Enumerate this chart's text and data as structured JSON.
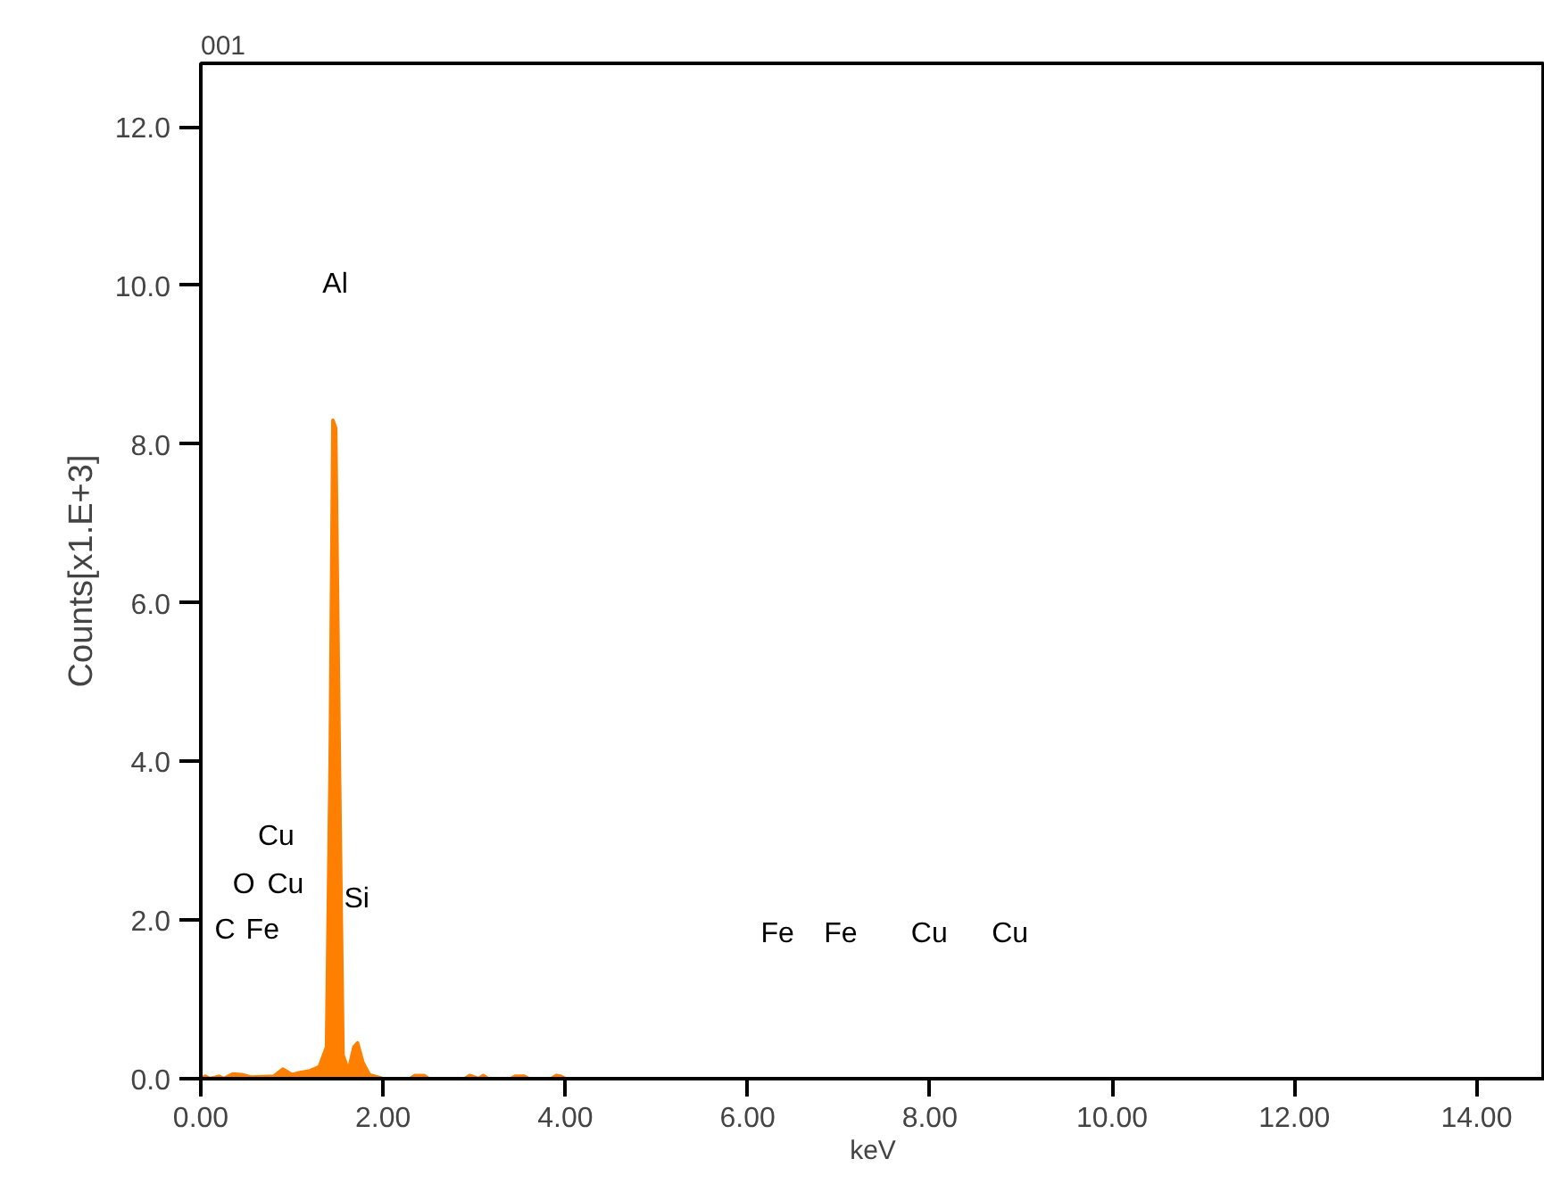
{
  "chart_data": {
    "type": "area",
    "title": "001",
    "xlabel": "keV",
    "ylabel": "Counts[x1.E+3]",
    "xlim": [
      0,
      14.75
    ],
    "ylim": [
      0,
      12.8
    ],
    "xticks": [
      {
        "value": 0,
        "label": "0.00"
      },
      {
        "value": 2,
        "label": "2.00"
      },
      {
        "value": 4,
        "label": "4.00"
      },
      {
        "value": 6,
        "label": "6.00"
      },
      {
        "value": 8,
        "label": "8.00"
      },
      {
        "value": 10,
        "label": "10.00"
      },
      {
        "value": 12,
        "label": "12.00"
      },
      {
        "value": 14,
        "label": "14.00"
      }
    ],
    "yticks": [
      {
        "value": 0,
        "label": "0.0"
      },
      {
        "value": 2,
        "label": "2.0"
      },
      {
        "value": 4,
        "label": "4.0"
      },
      {
        "value": 6,
        "label": "6.0"
      },
      {
        "value": 8,
        "label": "8.0"
      },
      {
        "value": 10,
        "label": "10.0"
      },
      {
        "value": 12,
        "label": "12.0"
      }
    ],
    "grid": false,
    "series": [
      {
        "color": "#ff8000",
        "x": [
          0,
          0.05,
          0.1,
          0.2,
          0.25,
          0.35,
          0.45,
          0.55,
          0.8,
          0.9,
          1.0,
          1.1,
          1.2,
          1.3,
          1.38,
          1.42,
          1.45,
          1.48,
          1.52,
          1.56,
          1.62,
          1.68,
          1.72,
          1.78,
          1.85,
          2.0,
          2.3,
          2.35,
          2.45,
          2.5,
          2.9,
          2.95,
          3.05,
          3.1,
          3.15,
          3.4,
          3.45,
          3.55,
          3.6,
          3.85,
          3.9,
          3.95,
          4.0,
          14.75
        ],
        "values": [
          0,
          0.03,
          0,
          0.03,
          0,
          0.06,
          0.05,
          0.02,
          0.03,
          0.12,
          0.05,
          0.08,
          0.1,
          0.15,
          0.4,
          4.0,
          8.3,
          8.2,
          4.0,
          0.3,
          0.1,
          0.4,
          0.45,
          0.2,
          0.05,
          0,
          0,
          0.04,
          0.04,
          0,
          0,
          0.04,
          0,
          0.04,
          0,
          0,
          0.03,
          0.03,
          0,
          0,
          0.04,
          0.03,
          0,
          0
        ]
      }
    ],
    "annotations": [
      "Al",
      "Cu",
      "O",
      "Cu",
      "C",
      "Fe",
      "Si",
      "Fe",
      "Fe",
      "Cu",
      "Cu"
    ]
  }
}
